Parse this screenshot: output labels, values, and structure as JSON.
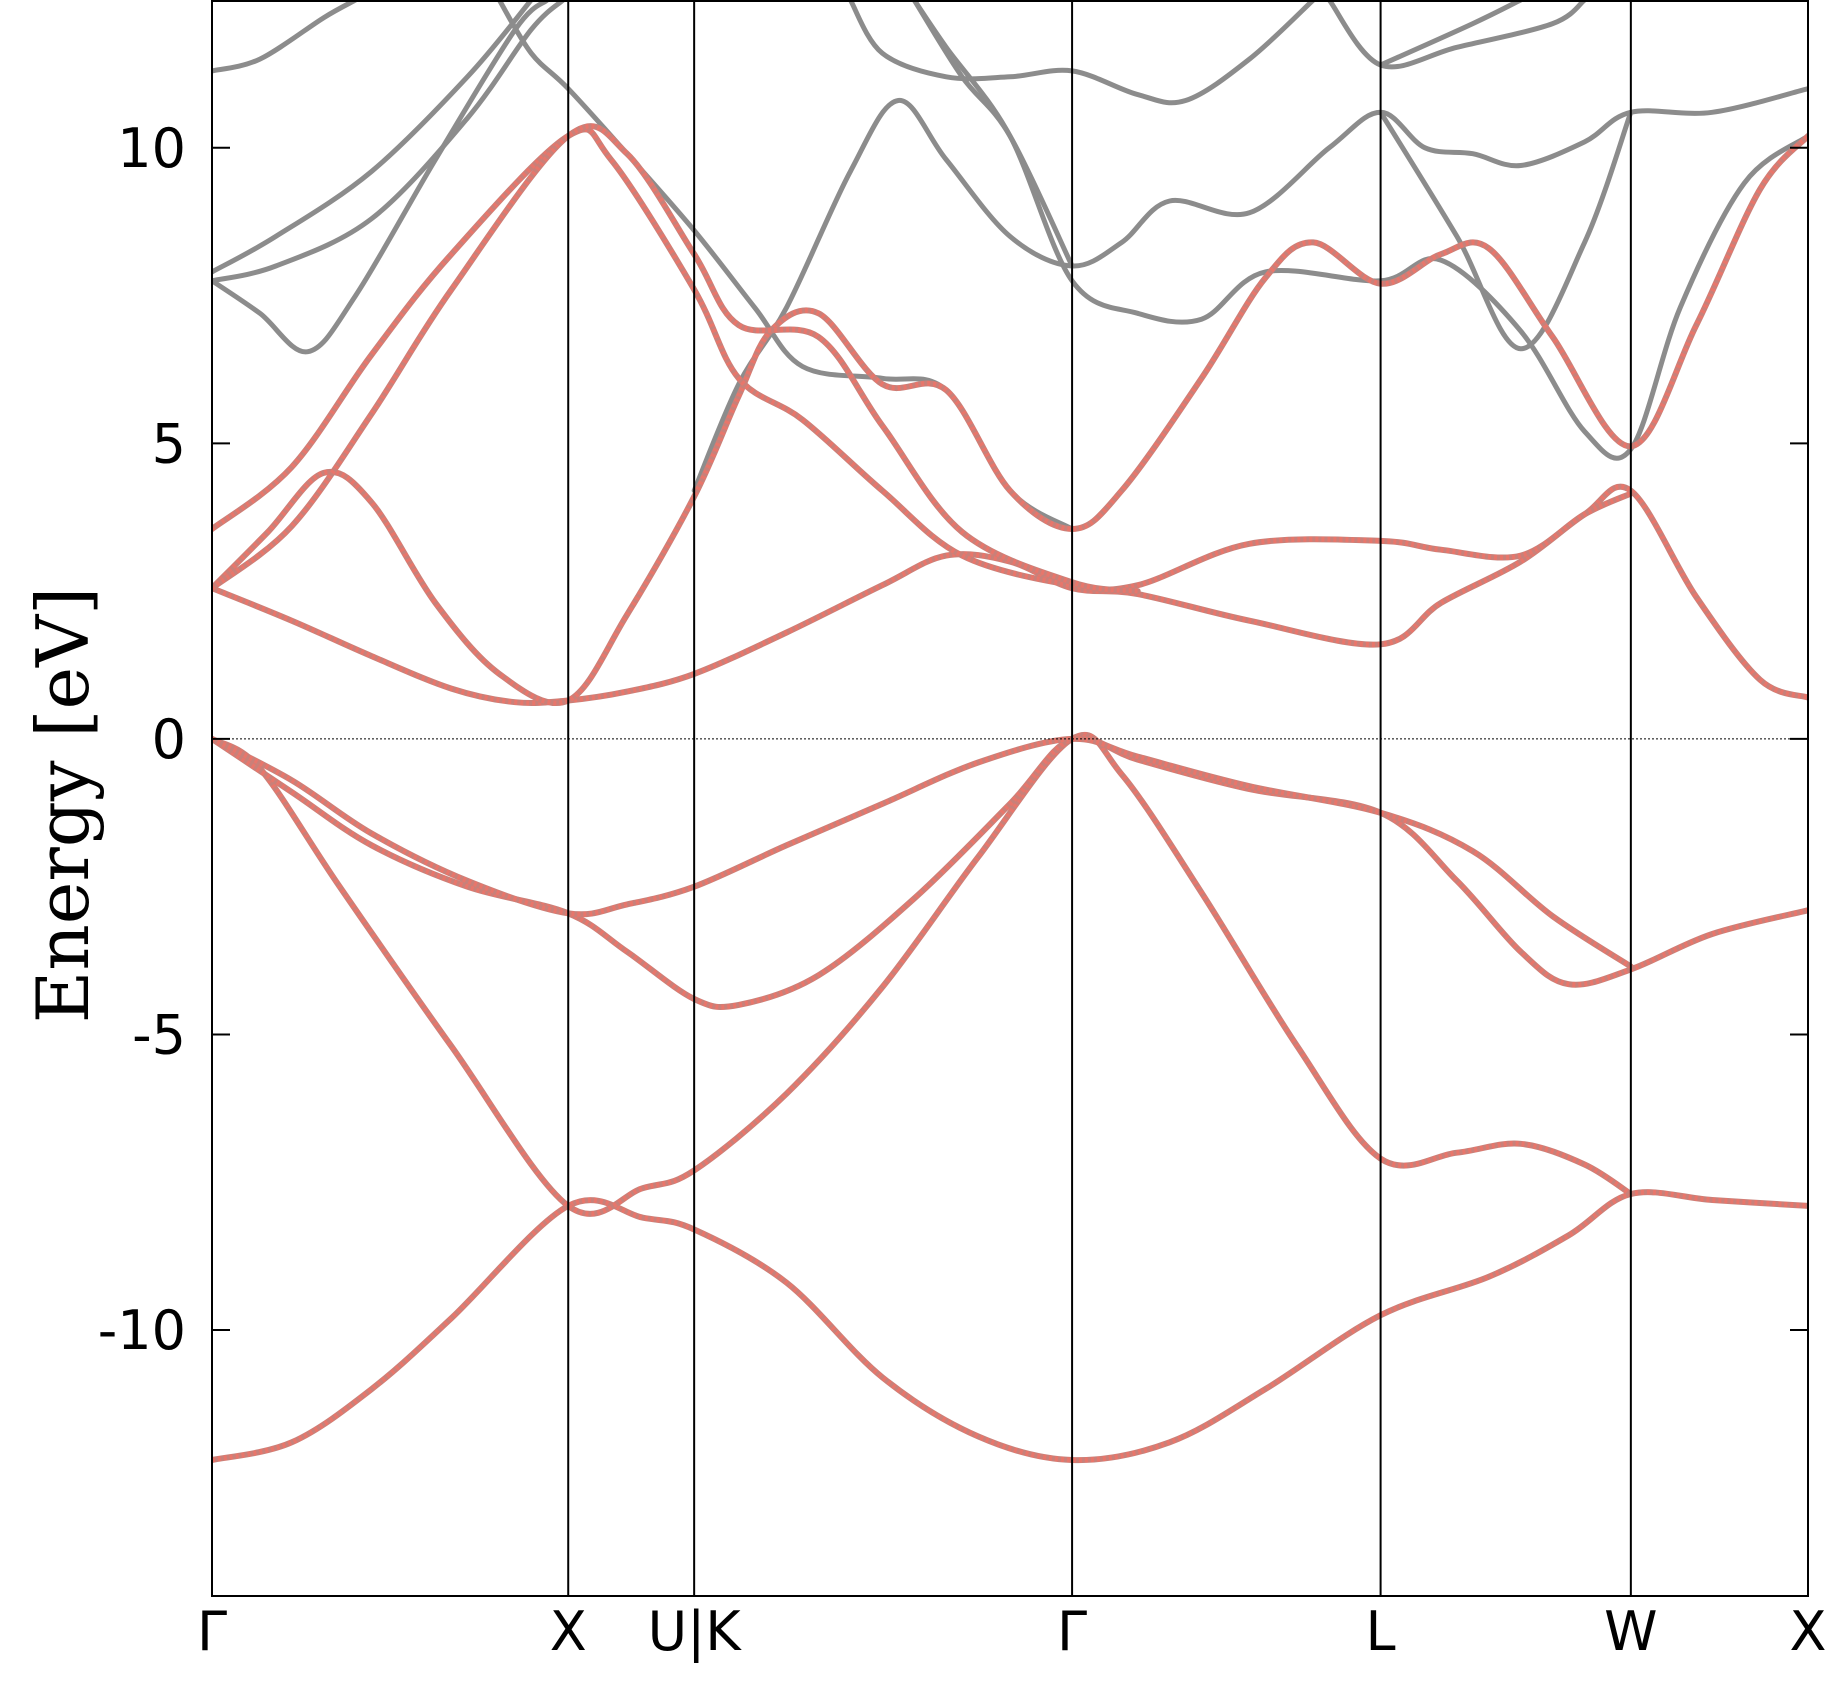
{
  "chart_data": {
    "type": "line",
    "title": "",
    "xlabel": "",
    "ylabel": "Energy [eV]",
    "ylim": [
      -14.5,
      12.5
    ],
    "xlim": [
      0,
      1
    ],
    "yticks": [
      {
        "value": 10,
        "label": "10"
      },
      {
        "value": 5,
        "label": "5"
      },
      {
        "value": 0,
        "label": "0"
      },
      {
        "value": -5,
        "label": "-5"
      },
      {
        "value": -10,
        "label": "-10"
      }
    ],
    "kpoints": [
      {
        "label": "Γ",
        "x": 0.0
      },
      {
        "label": "X",
        "x": 0.2232
      },
      {
        "label": "U|K",
        "x": 0.3021
      },
      {
        "label": "Γ",
        "x": 0.5389
      },
      {
        "label": "L",
        "x": 0.7322
      },
      {
        "label": "W",
        "x": 0.889
      },
      {
        "label": "X",
        "x": 1.0
      }
    ],
    "fermi_level": 0,
    "grid": false,
    "legend": "none",
    "colors": {
      "bands": "#8c8c8c",
      "highlight": "#e8766b",
      "axes": "#000000"
    },
    "series": [
      {
        "id": "v1",
        "style": "highlight",
        "points": [
          [
            0,
            -12.2
          ],
          [
            0.05,
            -11.9
          ],
          [
            0.1,
            -11.0
          ],
          [
            0.15,
            -9.8
          ],
          [
            0.2232,
            -7.9
          ],
          [
            0.27,
            -8.1
          ],
          [
            0.3021,
            -8.3
          ],
          [
            0.36,
            -9.2
          ],
          [
            0.42,
            -10.8
          ],
          [
            0.48,
            -11.8
          ],
          [
            0.5389,
            -12.2
          ],
          [
            0.6,
            -11.9
          ],
          [
            0.66,
            -11.0
          ],
          [
            0.7322,
            -9.75
          ],
          [
            0.8,
            -9.1
          ],
          [
            0.85,
            -8.4
          ],
          [
            0.889,
            -7.7
          ],
          [
            0.94,
            -7.8
          ],
          [
            1.0,
            -7.9
          ]
        ]
      },
      {
        "id": "v2",
        "style": "highlight",
        "points": [
          [
            0,
            0
          ],
          [
            0.03,
            -0.5
          ],
          [
            0.08,
            -2.5
          ],
          [
            0.15,
            -5.2
          ],
          [
            0.2232,
            -7.9
          ],
          [
            0.27,
            -7.6
          ],
          [
            0.3021,
            -7.3
          ],
          [
            0.36,
            -6.0
          ],
          [
            0.42,
            -4.2
          ],
          [
            0.48,
            -2.0
          ],
          [
            0.5389,
            0
          ],
          [
            0.57,
            -0.6
          ],
          [
            0.62,
            -2.6
          ],
          [
            0.68,
            -5.2
          ],
          [
            0.7322,
            -7.1
          ],
          [
            0.78,
            -7.0
          ],
          [
            0.82,
            -6.85
          ],
          [
            0.86,
            -7.2
          ],
          [
            0.889,
            -7.7
          ]
        ]
      },
      {
        "id": "v3",
        "style": "highlight",
        "points": [
          [
            0,
            0
          ],
          [
            0.05,
            -0.9
          ],
          [
            0.1,
            -1.8
          ],
          [
            0.16,
            -2.5
          ],
          [
            0.2232,
            -2.95
          ],
          [
            0.26,
            -3.6
          ],
          [
            0.3021,
            -4.4
          ],
          [
            0.33,
            -4.5
          ],
          [
            0.38,
            -4.0
          ],
          [
            0.44,
            -2.7
          ],
          [
            0.5,
            -1.1
          ],
          [
            0.5389,
            0
          ],
          [
            0.58,
            -0.35
          ],
          [
            0.65,
            -0.85
          ],
          [
            0.7322,
            -1.25
          ],
          [
            0.78,
            -2.4
          ],
          [
            0.82,
            -3.6
          ],
          [
            0.85,
            -4.15
          ],
          [
            0.889,
            -3.9
          ],
          [
            0.94,
            -3.3
          ],
          [
            1.0,
            -2.9
          ]
        ]
      },
      {
        "id": "v4",
        "style": "highlight",
        "points": [
          [
            0,
            0
          ],
          [
            0.05,
            -0.7
          ],
          [
            0.1,
            -1.6
          ],
          [
            0.16,
            -2.4
          ],
          [
            0.2232,
            -2.95
          ],
          [
            0.26,
            -2.8
          ],
          [
            0.3021,
            -2.5
          ],
          [
            0.36,
            -1.8
          ],
          [
            0.42,
            -1.1
          ],
          [
            0.48,
            -0.4
          ],
          [
            0.5389,
            0
          ],
          [
            0.58,
            -0.3
          ],
          [
            0.65,
            -0.8
          ],
          [
            0.7322,
            -1.25
          ],
          [
            0.79,
            -1.9
          ],
          [
            0.84,
            -3.0
          ],
          [
            0.889,
            -3.85
          ]
        ]
      },
      {
        "id": "c1",
        "style": "highlight",
        "points": [
          [
            0,
            2.55
          ],
          [
            0.05,
            2.0
          ],
          [
            0.1,
            1.4
          ],
          [
            0.15,
            0.85
          ],
          [
            0.19,
            0.62
          ],
          [
            0.2232,
            0.65
          ],
          [
            0.26,
            0.8
          ],
          [
            0.3021,
            1.1
          ],
          [
            0.36,
            1.8
          ],
          [
            0.42,
            2.6
          ],
          [
            0.46,
            3.1
          ],
          [
            0.5,
            3.0
          ],
          [
            0.5389,
            2.55
          ],
          [
            0.58,
            2.45
          ],
          [
            0.65,
            2.0
          ],
          [
            0.7322,
            1.6
          ],
          [
            0.77,
            2.3
          ],
          [
            0.82,
            3.0
          ],
          [
            0.86,
            3.8
          ],
          [
            0.889,
            4.2
          ],
          [
            0.93,
            2.4
          ],
          [
            0.97,
            1.0
          ],
          [
            1.0,
            0.7
          ]
        ]
      },
      {
        "id": "c2",
        "style": "highlight",
        "points": [
          [
            0,
            2.55
          ],
          [
            0.035,
            3.5
          ],
          [
            0.07,
            4.5
          ],
          [
            0.1,
            4.0
          ],
          [
            0.14,
            2.3
          ],
          [
            0.18,
            1.1
          ],
          [
            0.2232,
            0.65
          ],
          [
            0.26,
            2.1
          ],
          [
            0.3021,
            4.1
          ],
          [
            0.33,
            5.8
          ],
          [
            0.35,
            6.9
          ],
          [
            0.38,
            7.2
          ],
          [
            0.42,
            6.0
          ],
          [
            0.46,
            5.9
          ],
          [
            0.5,
            4.2
          ],
          [
            0.5389,
            3.55
          ],
          [
            0.57,
            4.2
          ],
          [
            0.62,
            6.1
          ],
          [
            0.66,
            7.8
          ],
          [
            0.69,
            8.4
          ],
          [
            0.7322,
            7.7
          ],
          [
            0.77,
            8.2
          ],
          [
            0.8,
            8.3
          ],
          [
            0.84,
            6.8
          ],
          [
            0.889,
            4.95
          ],
          [
            0.93,
            7.0
          ],
          [
            0.97,
            9.3
          ],
          [
            1.0,
            10.2
          ]
        ]
      },
      {
        "id": "c3",
        "style": "highlight",
        "points": [
          [
            0,
            3.55
          ],
          [
            0.05,
            4.6
          ],
          [
            0.1,
            6.5
          ],
          [
            0.15,
            8.2
          ],
          [
            0.2232,
            10.2
          ],
          [
            0.25,
            9.8
          ],
          [
            0.3021,
            7.6
          ],
          [
            0.33,
            6.1
          ],
          [
            0.37,
            5.4
          ],
          [
            0.42,
            4.2
          ],
          [
            0.47,
            3.1
          ],
          [
            0.5389,
            2.6
          ],
          [
            0.58,
            2.6
          ],
          [
            0.65,
            3.3
          ],
          [
            0.7322,
            3.35
          ],
          [
            0.77,
            3.2
          ],
          [
            0.82,
            3.1
          ],
          [
            0.86,
            3.8
          ],
          [
            0.889,
            4.15
          ]
        ]
      },
      {
        "id": "c4",
        "style": "highlight",
        "points": [
          [
            0,
            2.55
          ],
          [
            0.05,
            3.6
          ],
          [
            0.1,
            5.5
          ],
          [
            0.15,
            7.6
          ],
          [
            0.2232,
            10.2
          ],
          [
            0.26,
            9.9
          ],
          [
            0.3021,
            8.2
          ],
          [
            0.33,
            7.0
          ],
          [
            0.38,
            6.8
          ],
          [
            0.42,
            5.3
          ],
          [
            0.47,
            3.5
          ],
          [
            0.5389,
            2.65
          ],
          [
            0.58,
            2.5
          ]
        ]
      },
      {
        "id": "g1",
        "style": "band",
        "points": [
          [
            0,
            11.3
          ],
          [
            0.03,
            11.5
          ],
          [
            0.07,
            12.2
          ],
          [
            0.09,
            12.5
          ]
        ]
      },
      {
        "id": "g2",
        "style": "band",
        "points": [
          [
            0,
            7.9
          ],
          [
            0.04,
            8.5
          ],
          [
            0.1,
            9.6
          ],
          [
            0.16,
            11.2
          ],
          [
            0.2,
            12.5
          ]
        ]
      },
      {
        "id": "g3",
        "style": "band",
        "points": [
          [
            0,
            7.75
          ],
          [
            0.04,
            8.0
          ],
          [
            0.1,
            8.8
          ],
          [
            0.16,
            10.5
          ],
          [
            0.2,
            12.0
          ],
          [
            0.22,
            12.5
          ]
        ]
      },
      {
        "id": "g4",
        "style": "band",
        "points": [
          [
            0,
            7.75
          ],
          [
            0.03,
            7.2
          ],
          [
            0.06,
            6.55
          ],
          [
            0.09,
            7.5
          ],
          [
            0.14,
            9.8
          ],
          [
            0.19,
            12.0
          ],
          [
            0.21,
            12.5
          ]
        ]
      },
      {
        "id": "g5",
        "style": "band",
        "points": [
          [
            0.18,
            12.5
          ],
          [
            0.2,
            11.6
          ],
          [
            0.2232,
            11.0
          ],
          [
            0.26,
            9.9
          ],
          [
            0.3021,
            8.6
          ],
          [
            0.34,
            7.3
          ],
          [
            0.37,
            6.3
          ],
          [
            0.42,
            6.1
          ],
          [
            0.46,
            5.9
          ],
          [
            0.5,
            4.2
          ],
          [
            0.5389,
            3.55
          ]
        ]
      },
      {
        "id": "g6",
        "style": "band",
        "points": [
          [
            0.3021,
            4.2
          ],
          [
            0.33,
            6.0
          ],
          [
            0.36,
            7.3
          ],
          [
            0.4,
            9.6
          ],
          [
            0.43,
            10.8
          ],
          [
            0.46,
            9.8
          ],
          [
            0.5,
            8.5
          ],
          [
            0.5389,
            8.0
          ],
          [
            0.57,
            8.4
          ],
          [
            0.6,
            9.1
          ],
          [
            0.65,
            8.9
          ],
          [
            0.7,
            10.0
          ],
          [
            0.7322,
            10.6
          ],
          [
            0.76,
            10.0
          ],
          [
            0.79,
            9.9
          ],
          [
            0.82,
            9.7
          ],
          [
            0.86,
            10.1
          ],
          [
            0.889,
            10.6
          ],
          [
            0.94,
            10.6
          ],
          [
            1.0,
            11.0
          ]
        ]
      },
      {
        "id": "g7",
        "style": "band",
        "points": [
          [
            0.4,
            12.5
          ],
          [
            0.42,
            11.6
          ],
          [
            0.46,
            11.2
          ],
          [
            0.5,
            11.2
          ],
          [
            0.5389,
            11.3
          ],
          [
            0.58,
            10.9
          ],
          [
            0.61,
            10.8
          ],
          [
            0.65,
            11.5
          ],
          [
            0.69,
            12.5
          ]
        ]
      },
      {
        "id": "g8",
        "style": "band",
        "points": [
          [
            0.44,
            12.5
          ],
          [
            0.46,
            11.7
          ],
          [
            0.5,
            10.2
          ],
          [
            0.5389,
            7.75
          ],
          [
            0.58,
            7.2
          ],
          [
            0.62,
            7.1
          ],
          [
            0.66,
            7.9
          ],
          [
            0.7322,
            7.75
          ],
          [
            0.77,
            8.1
          ],
          [
            0.82,
            6.9
          ],
          [
            0.86,
            5.2
          ],
          [
            0.889,
            4.9
          ],
          [
            0.92,
            7.3
          ],
          [
            0.96,
            9.4
          ],
          [
            1.0,
            10.2
          ]
        ]
      },
      {
        "id": "g9",
        "style": "band",
        "points": [
          [
            0.5389,
            8.0
          ],
          [
            0.5,
            10.2
          ],
          [
            0.47,
            11.2
          ],
          [
            0.44,
            12.5
          ]
        ]
      },
      {
        "id": "g10",
        "style": "band",
        "points": [
          [
            0.7,
            12.5
          ],
          [
            0.7322,
            11.4
          ],
          [
            0.78,
            11.7
          ],
          [
            0.84,
            12.1
          ],
          [
            0.86,
            12.5
          ]
        ]
      },
      {
        "id": "g11",
        "style": "band",
        "points": [
          [
            0.7322,
            11.4
          ],
          [
            0.79,
            12.1
          ],
          [
            0.82,
            12.5
          ]
        ]
      },
      {
        "id": "g12",
        "style": "band",
        "points": [
          [
            0.7322,
            10.6
          ],
          [
            0.78,
            8.5
          ],
          [
            0.82,
            6.6
          ],
          [
            0.86,
            8.4
          ],
          [
            0.889,
            10.6
          ]
        ]
      }
    ]
  }
}
